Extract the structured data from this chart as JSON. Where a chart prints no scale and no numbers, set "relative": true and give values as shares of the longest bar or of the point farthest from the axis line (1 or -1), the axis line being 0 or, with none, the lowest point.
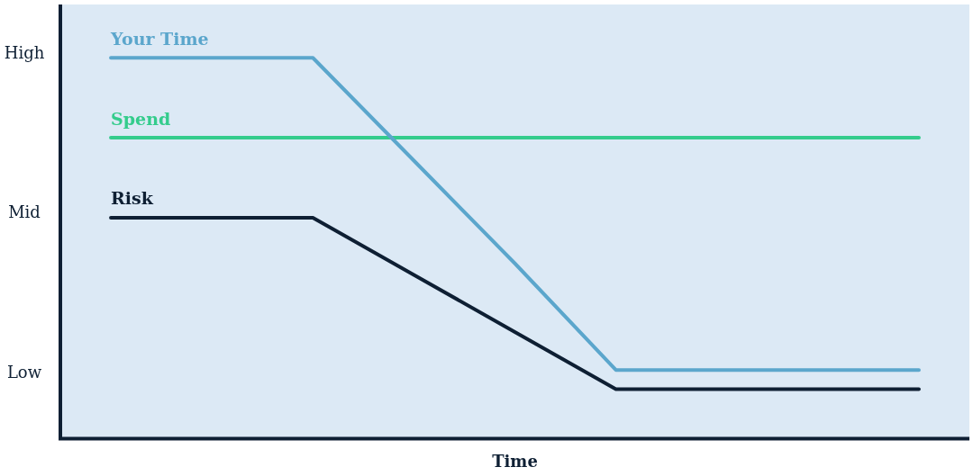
{
  "chart_data": {
    "type": "line",
    "xlabel": "Time",
    "categories": [
      null,
      null,
      null,
      null,
      null,
      null,
      null,
      null,
      null
    ],
    "relative": true,
    "series": [
      {
        "name": "Your Time",
        "color": "#5ba6cc",
        "values": [
          1,
          1,
          1,
          0.73,
          0.46,
          0.18,
          0.18,
          0.18,
          0.18
        ]
      },
      {
        "name": "Spend",
        "color": "#34cc8c",
        "values": [
          0.79,
          0.79,
          0.79,
          0.79,
          0.79,
          0.79,
          0.79,
          0.79,
          0.79
        ]
      },
      {
        "name": "Risk",
        "color": "#0e1f33",
        "values": [
          0.58,
          0.58,
          0.58,
          0.43,
          0.28,
          0.13,
          0.13,
          0.13,
          0.13
        ]
      }
    ],
    "annotations": [
      "High",
      "Mid",
      "Low"
    ],
    "grid": false,
    "legend": false,
    "marker": "none",
    "line_style": "solid"
  }
}
